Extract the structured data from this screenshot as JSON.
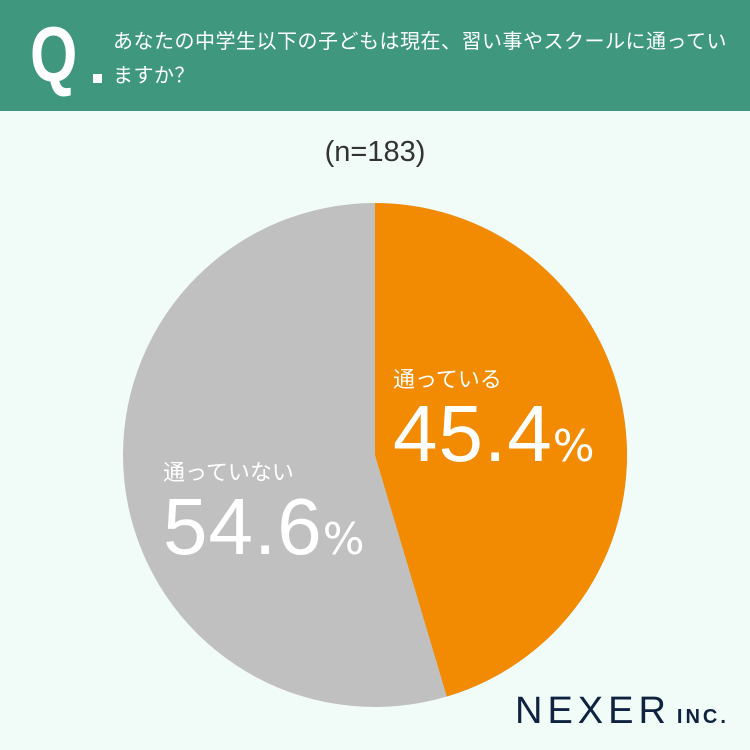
{
  "header": {
    "q_mark": "Q",
    "question": "あなたの中学生以下の子どもは現在、習い事やスクールに通っていますか？"
  },
  "sample": "(n=183)",
  "chart_data": {
    "type": "pie",
    "title": "あなたの中学生以下の子どもは現在、習い事やスクールに通っていますか？",
    "subtitle": "(n=183)",
    "categories": [
      "通っている",
      "通っていない"
    ],
    "values": [
      45.4,
      54.6
    ],
    "colors": [
      "#f28a02",
      "#c0c0c0"
    ],
    "unit": "%",
    "start_angle": "12 o'clock, clockwise"
  },
  "labels": {
    "yes": {
      "name": "通っている",
      "value": "45.4",
      "pct": "%"
    },
    "no": {
      "name": "通っていない",
      "value": "54.6",
      "pct": "%"
    }
  },
  "logo": {
    "main": "NEXER",
    "inc": "INC."
  }
}
